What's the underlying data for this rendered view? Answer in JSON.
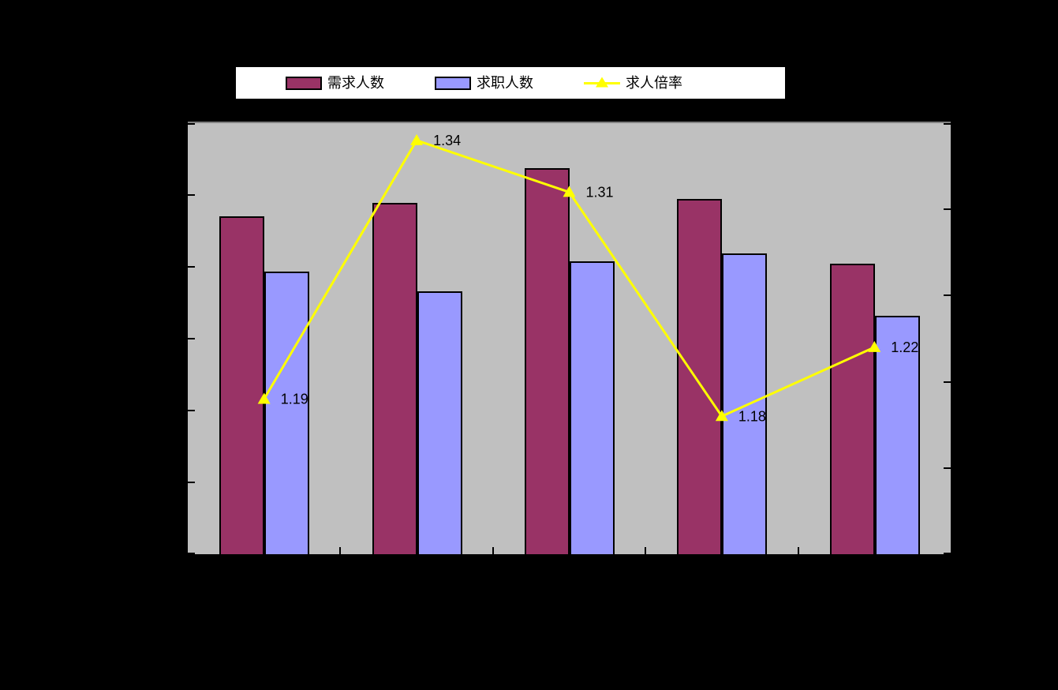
{
  "colors": {
    "chart_background": "#000000",
    "plot_background": "#c0c0c0",
    "plot_top_border": "#808080",
    "axis_and_outline": "#000000",
    "demand_bar": "#993366",
    "applicant_bar": "#9999ff",
    "ratio_line": "#ffff00",
    "legend_background": "#ffffff",
    "data_label_text": "#000000"
  },
  "legend": {
    "position": "top"
  },
  "chart_data": {
    "type": "bar",
    "subtype": "grouped-bars-with-secondary-axis-line",
    "title": "",
    "xlabel": "",
    "ylabel": "",
    "n_groups": 5,
    "categories": [
      "",
      "",
      "",
      "",
      ""
    ],
    "series": [
      {
        "name": "需求人数",
        "type": "bar",
        "color": "#993366",
        "axis": "primary",
        "values_fraction_of_left_axis": [
          0.784,
          0.815,
          0.896,
          0.824,
          0.674
        ]
      },
      {
        "name": "求职人数",
        "type": "bar",
        "color": "#9999ff",
        "axis": "primary",
        "values_fraction_of_left_axis": [
          0.656,
          0.61,
          0.679,
          0.698,
          0.553
        ]
      },
      {
        "name": "求人倍率",
        "type": "line",
        "color": "#ffff00",
        "marker": "triangle-up",
        "axis": "secondary",
        "values": [
          1.19,
          1.34,
          1.31,
          1.18,
          1.22
        ],
        "data_labels": [
          "1.19",
          "1.34",
          "1.31",
          "1.18",
          "1.22"
        ]
      }
    ],
    "primary_ylim": [
      0,
      1
    ],
    "secondary_ylim": [
      1.1,
      1.35
    ],
    "left_axis": {
      "tick_count": 7,
      "labels_visible": false
    },
    "right_axis": {
      "tick_count": 6,
      "labels_visible": false
    },
    "x_axis": {
      "divider_tick_count": 4,
      "labels_visible": false
    },
    "grid": false,
    "legend_position": "top"
  }
}
